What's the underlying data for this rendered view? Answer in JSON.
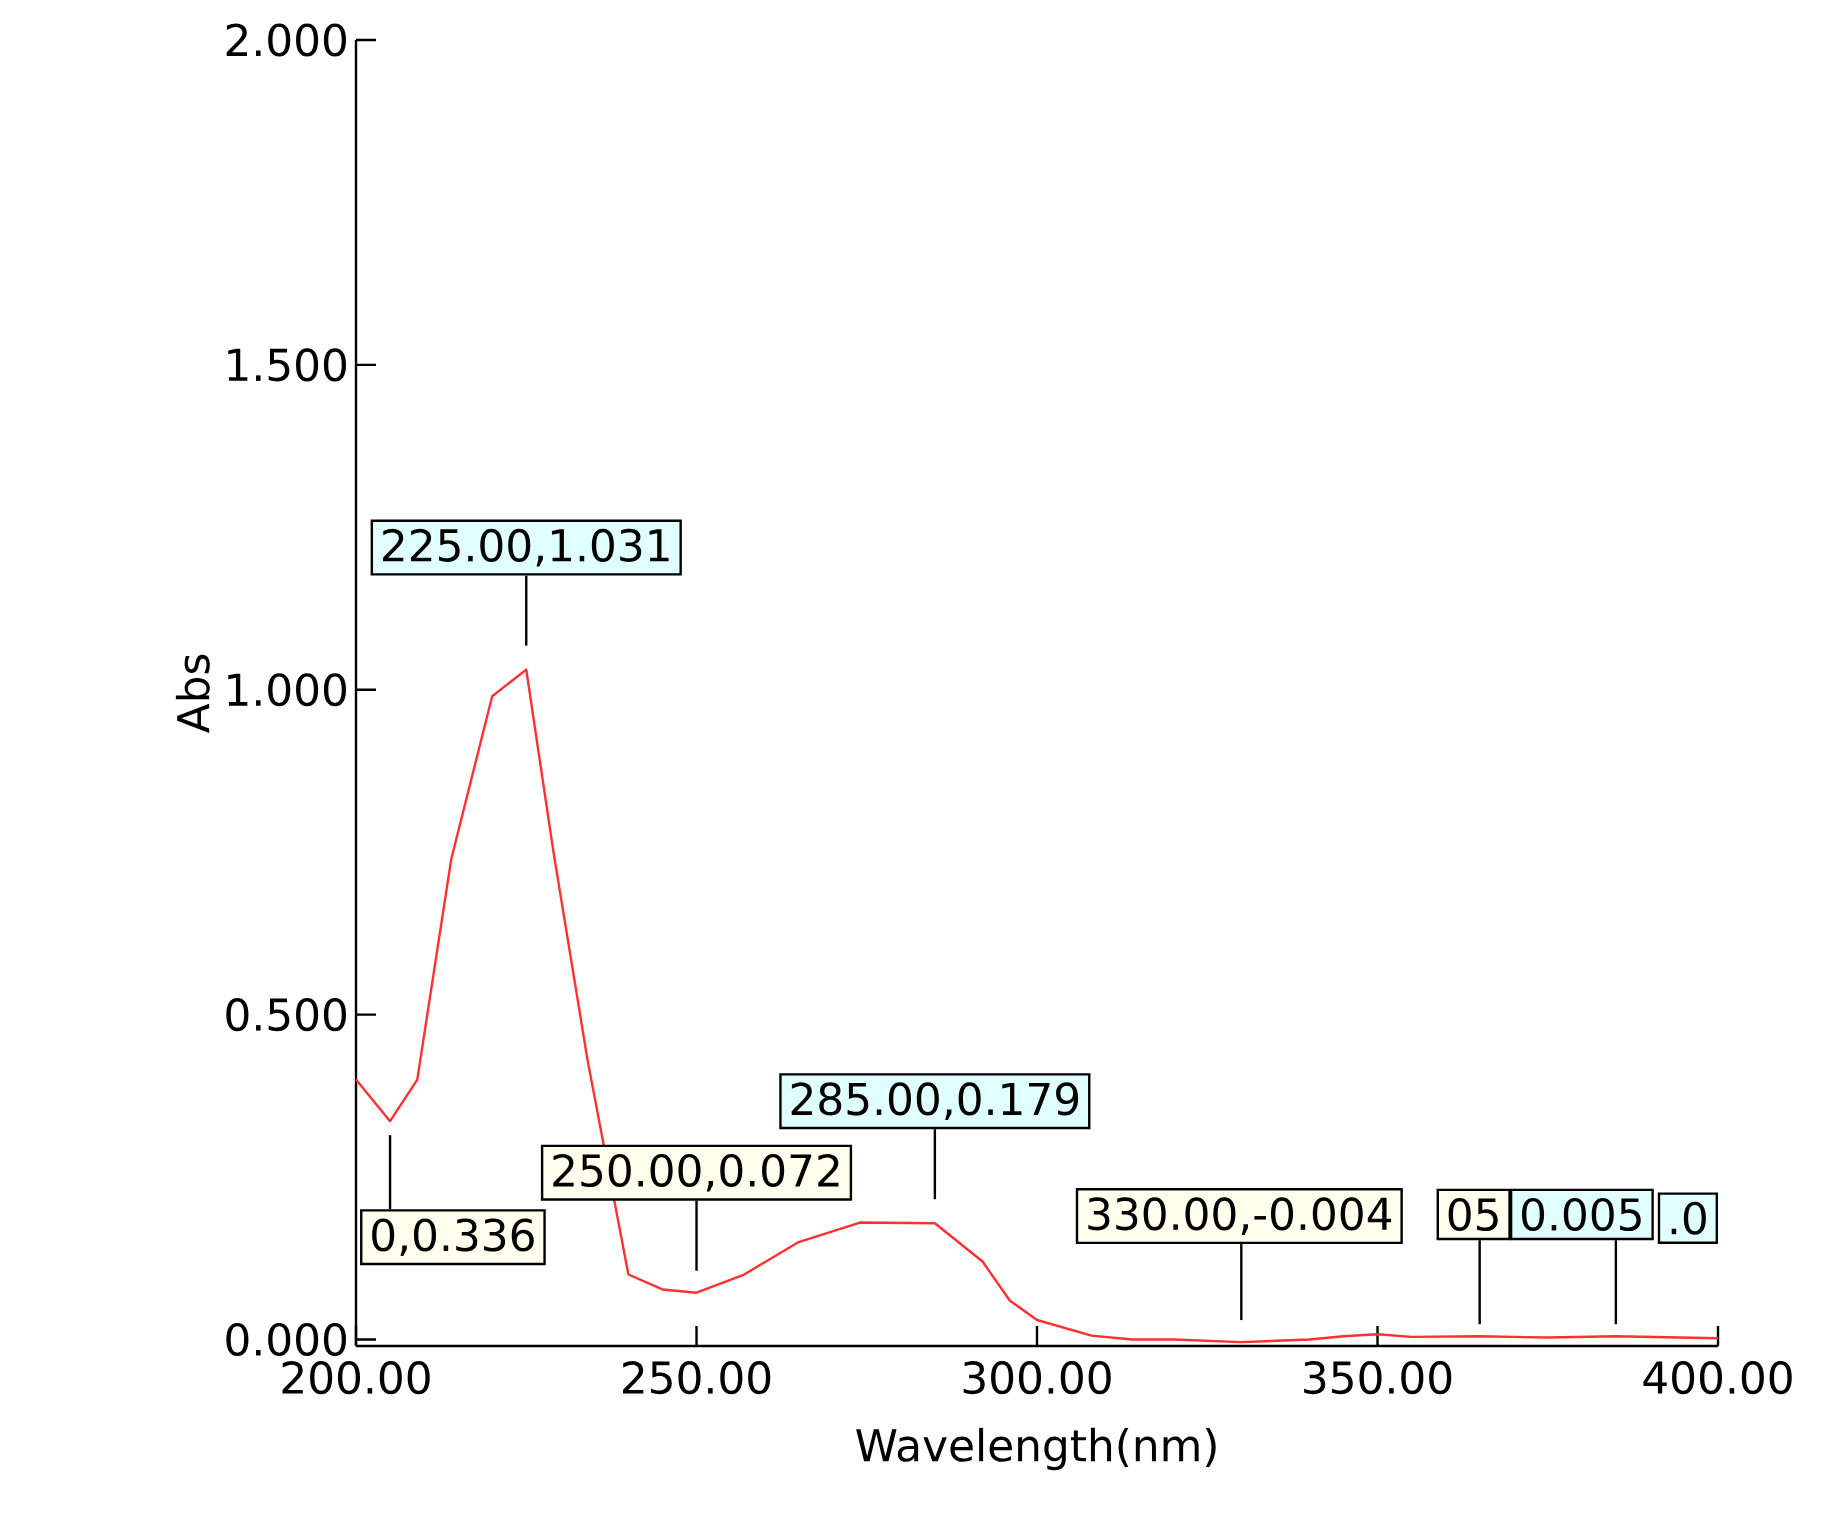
{
  "chart_data": {
    "type": "line",
    "xlabel": "Wavelength(nm)",
    "ylabel": "Abs",
    "xlim": [
      200,
      400
    ],
    "ylim": [
      -0.01,
      2.0
    ],
    "xticks": [
      {
        "value": 200,
        "label": "200.00"
      },
      {
        "value": 250,
        "label": "250.00"
      },
      {
        "value": 300,
        "label": "300.00"
      },
      {
        "value": 350,
        "label": "350.00"
      },
      {
        "value": 400,
        "label": "400.00"
      }
    ],
    "yticks": [
      {
        "value": 0,
        "label": "0.000"
      },
      {
        "value": 0.5,
        "label": "0.500"
      },
      {
        "value": 1.0,
        "label": "1.000"
      },
      {
        "value": 1.5,
        "label": "1.500"
      },
      {
        "value": 2.0,
        "label": "2.000"
      }
    ],
    "x": [
      200,
      205,
      209,
      214,
      220,
      225,
      229,
      234,
      240,
      245,
      250,
      257,
      265,
      274,
      285,
      292,
      296,
      300,
      308,
      314,
      320,
      330,
      340,
      345,
      350,
      355,
      365,
      375,
      385,
      400
    ],
    "series": [
      {
        "color": "#ff3030",
        "values": [
          0.4,
          0.336,
          0.4,
          0.74,
          0.99,
          1.031,
          0.75,
          0.43,
          0.1,
          0.077,
          0.072,
          0.1,
          0.15,
          0.18,
          0.179,
          0.12,
          0.06,
          0.03,
          0.006,
          0.0,
          0.0,
          -0.004,
          0.0,
          0.005,
          0.008,
          0.004,
          0.005,
          0.003,
          0.005,
          0.002
        ]
      }
    ],
    "annotations": [
      {
        "text": "225.00,1.031",
        "x": 225,
        "y": 1.031
      },
      {
        "text": "0,0.336",
        "x": 205,
        "y": 0.336
      },
      {
        "text": "250.00,0.072",
        "x": 250,
        "y": 0.072
      },
      {
        "text": "285.00,0.179",
        "x": 285,
        "y": 0.179
      },
      {
        "text": "330.00,-0.004",
        "x": 330,
        "y": -0.004
      },
      {
        "text": "05",
        "x": 365,
        "y": 0.005
      },
      {
        "text": "0.005",
        "x": 385,
        "y": 0.005
      },
      ".0"
    ]
  }
}
